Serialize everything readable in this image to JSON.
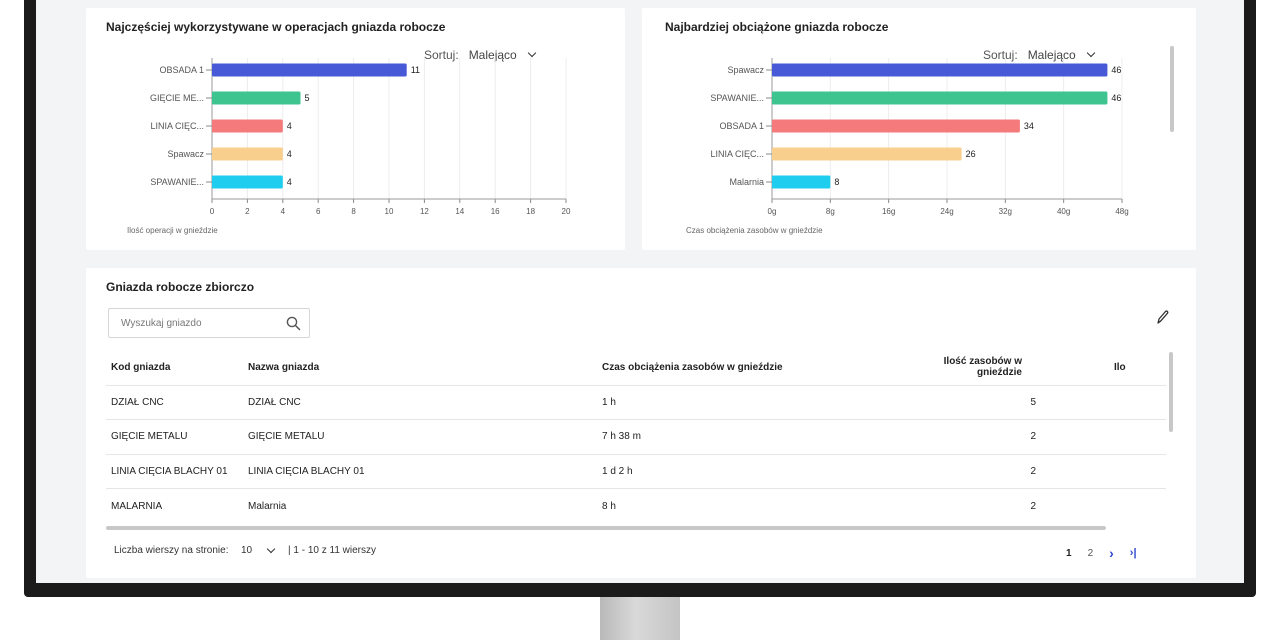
{
  "left_chart": {
    "title": "Najczęściej wykorzystywane w operacjach gniazda robocze",
    "sort_label": "Sortuj:",
    "sort_value": "Malejąco",
    "caption": "Ilość operacji w gnieździe",
    "chart_data": {
      "type": "bar",
      "orientation": "horizontal",
      "categories": [
        "OBSADA 1",
        "GIĘCIE ME...",
        "LINIA CIĘC...",
        "Spawacz",
        "SPAWANIE..."
      ],
      "values": [
        11,
        5,
        4,
        4,
        4
      ],
      "value_labels": [
        "11",
        "5",
        "4",
        "4",
        "4"
      ],
      "colors": [
        "#4759d6",
        "#3ec48f",
        "#f47a7c",
        "#f8cf8d",
        "#1fcdee"
      ],
      "xlim": [
        0,
        20
      ],
      "xticks": [
        "0",
        "2",
        "4",
        "6",
        "8",
        "10",
        "12",
        "14",
        "16",
        "18",
        "20"
      ],
      "grid": true
    }
  },
  "right_chart": {
    "title": "Najbardziej obciążone gniazda robocze",
    "sort_label": "Sortuj:",
    "sort_value": "Malejąco",
    "caption": "Czas obciążenia zasobów w gnieździe",
    "chart_data": {
      "type": "bar",
      "orientation": "horizontal",
      "categories": [
        "Spawacz",
        "SPAWANIE...",
        "OBSADA 1",
        "LINIA CIĘC...",
        "Malarnia"
      ],
      "values": [
        46,
        46,
        34,
        26,
        8
      ],
      "value_labels": [
        "46",
        "46",
        "34",
        "26",
        "8"
      ],
      "colors": [
        "#4759d6",
        "#3ec48f",
        "#f47a7c",
        "#f8cf8d",
        "#1fcdee"
      ],
      "xlim": [
        0,
        48
      ],
      "xticks": [
        "0g",
        "8g",
        "16g",
        "24g",
        "32g",
        "40g",
        "48g"
      ],
      "grid": true
    }
  },
  "summary": {
    "title": "Gniazda robocze zbiorczo",
    "search_placeholder": "Wyszukaj gniazdo",
    "columns": [
      "Kod gniazda",
      "Nazwa gniazda",
      "Czas obciążenia zasobów w gnieździe",
      "Ilość zasobów w gnieździe",
      "Ilo"
    ],
    "rows": [
      [
        "DZIAŁ CNC",
        "DZIAŁ CNC",
        "1 h",
        "5"
      ],
      [
        "GIĘCIE METALU",
        "GIĘCIE METALU",
        "7 h 38 m",
        "2"
      ],
      [
        "LINIA CIĘCIA BLACHY 01",
        "LINIA CIĘCIA BLACHY 01",
        "1 d 2 h",
        "2"
      ],
      [
        "MALARNIA",
        "Malarnia",
        "8 h",
        "2"
      ]
    ],
    "rows_per_page_label": "Liczba wierszy na stronie:",
    "rows_per_page_value": "10",
    "range_label": "| 1 - 10 z 11 wierszy",
    "pages": [
      "1",
      "2"
    ],
    "next_symbol": "›",
    "last_symbol": "›|"
  }
}
